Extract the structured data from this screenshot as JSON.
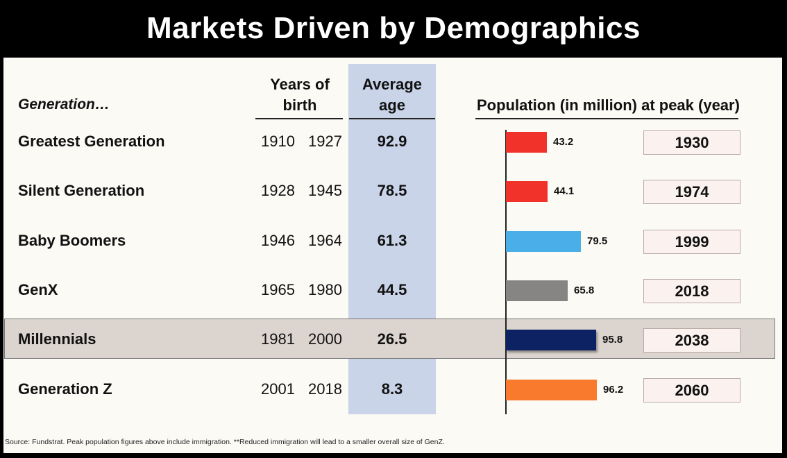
{
  "title": "Markets Driven by Demographics",
  "headers": {
    "generation": "Generation…",
    "years_line1": "Years of",
    "years_line2": "birth",
    "avg_line1": "Average",
    "avg_line2": "age",
    "population": "Population (in million) at peak (year)"
  },
  "chart_data": {
    "type": "bar",
    "orientation": "horizontal",
    "categories": [
      "Greatest Generation",
      "Silent Generation",
      "Baby Boomers",
      "GenX",
      "Millennials",
      "Generation Z"
    ],
    "values": [
      43.2,
      44.1,
      79.5,
      65.8,
      95.8,
      96.2
    ],
    "colors": [
      "#f0322b",
      "#f0322b",
      "#4aaee8",
      "#878584",
      "#0c2262",
      "#f97a2c"
    ],
    "highlighted": "Millennials"
  },
  "rows": [
    {
      "name": "Greatest Generation",
      "start": "1910",
      "end": "1927",
      "avg_age": "92.9",
      "pop_label": "43.2",
      "peak_year": "1930"
    },
    {
      "name": "Silent Generation",
      "start": "1928",
      "end": "1945",
      "avg_age": "78.5",
      "pop_label": "44.1",
      "peak_year": "1974"
    },
    {
      "name": "Baby Boomers",
      "start": "1946",
      "end": "1964",
      "avg_age": "61.3",
      "pop_label": "79.5",
      "peak_year": "1999"
    },
    {
      "name": "GenX",
      "start": "1965",
      "end": "1980",
      "avg_age": "44.5",
      "pop_label": "65.8",
      "peak_year": "2018"
    },
    {
      "name": "Millennials",
      "start": "1981",
      "end": "2000",
      "avg_age": "26.5",
      "pop_label": "95.8",
      "peak_year": "2038"
    },
    {
      "name": "Generation Z",
      "start": "2001",
      "end": "2018",
      "avg_age": "8.3",
      "pop_label": "96.2",
      "peak_year": "2060"
    }
  ],
  "source": "Source: Fundstrat.  Peak population figures above include immigration.  **Reduced immigration will lead to a smaller overall size of GenZ."
}
